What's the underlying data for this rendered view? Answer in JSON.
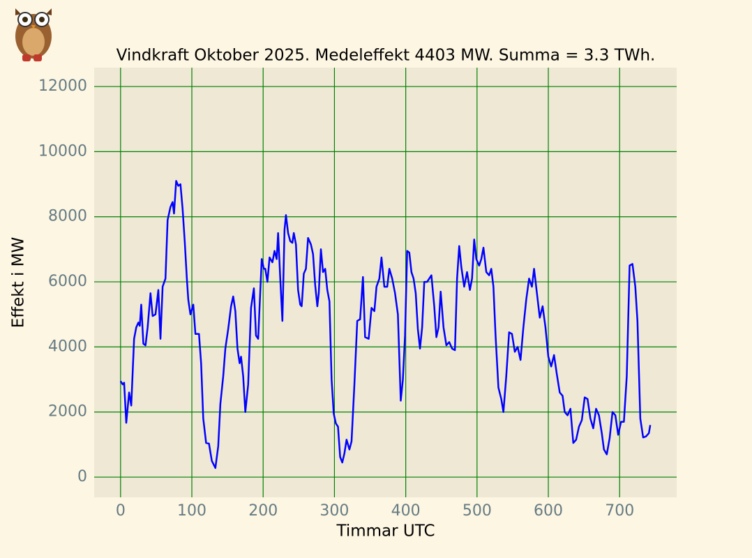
{
  "chart_data": {
    "type": "line",
    "title": "Vindkraft Oktober 2025. Medeleffekt 4403 MW. Summa = 3.3 TWh.",
    "xlabel": "Timmar UTC",
    "ylabel": "Effekt i MW",
    "x": [
      0,
      3,
      5,
      8,
      12,
      15,
      19,
      22,
      25,
      27,
      29,
      32,
      35,
      38,
      42,
      45,
      49,
      53,
      56,
      59,
      63,
      66,
      70,
      73,
      75,
      78,
      81,
      84,
      87,
      90,
      93,
      95,
      98,
      102,
      105,
      110,
      113,
      116,
      120,
      124,
      128,
      133,
      137,
      140,
      144,
      147,
      151,
      155,
      158,
      161,
      164,
      167,
      169,
      172,
      175,
      179,
      183,
      187,
      190,
      193,
      198,
      201,
      203,
      206,
      209,
      213,
      216,
      219,
      221,
      224,
      227,
      230,
      232,
      235,
      238,
      241,
      243,
      246,
      249,
      252,
      254,
      255,
      257,
      260,
      263,
      267,
      270,
      273,
      276,
      278,
      281,
      284,
      287,
      290,
      293,
      296,
      299,
      302,
      305,
      308,
      311,
      314,
      317,
      321,
      324,
      328,
      332,
      336,
      340,
      343,
      348,
      352,
      356,
      359,
      363,
      366,
      370,
      374,
      377,
      381,
      385,
      389,
      393,
      396,
      399,
      402,
      405,
      408,
      411,
      414,
      417,
      420,
      423,
      426,
      430,
      433,
      436,
      440,
      443,
      446,
      449,
      453,
      457,
      461,
      465,
      469,
      472,
      475,
      478,
      482,
      486,
      490,
      493,
      496,
      499,
      503,
      506,
      509,
      513,
      517,
      520,
      523,
      526,
      530,
      534,
      537,
      541,
      545,
      549,
      553,
      557,
      561,
      565,
      569,
      573,
      577,
      580,
      584,
      588,
      592,
      596,
      600,
      604,
      608,
      612,
      616,
      620,
      623,
      627,
      631,
      635,
      639,
      643,
      647,
      651,
      655,
      659,
      663,
      667,
      671,
      675,
      678,
      682,
      686,
      690,
      694,
      698,
      702,
      706,
      710,
      714,
      718,
      722,
      725,
      729,
      733,
      737,
      741,
      743
    ],
    "values": [
      2950,
      2850,
      2900,
      1670,
      2600,
      2200,
      4250,
      4600,
      4750,
      4650,
      5300,
      4100,
      4050,
      4600,
      5650,
      4950,
      5000,
      5750,
      4250,
      5850,
      6100,
      7900,
      8300,
      8450,
      8100,
      9100,
      8950,
      9000,
      8250,
      7250,
      6100,
      5450,
      5000,
      5300,
      4400,
      4400,
      3500,
      1800,
      1050,
      1030,
      500,
      280,
      950,
      2250,
      3100,
      3950,
      4550,
      5250,
      5550,
      5100,
      3950,
      3500,
      3700,
      3100,
      2000,
      2850,
      5200,
      5800,
      4350,
      4250,
      6700,
      6400,
      6400,
      6000,
      6750,
      6600,
      6950,
      6700,
      7500,
      6100,
      4800,
      7600,
      8050,
      7500,
      7250,
      7200,
      7500,
      7150,
      5750,
      5300,
      5250,
      5550,
      6250,
      6400,
      7350,
      7150,
      6850,
      5900,
      5250,
      5650,
      7000,
      6300,
      6400,
      5750,
      5400,
      3000,
      1950,
      1650,
      1550,
      620,
      450,
      730,
      1150,
      850,
      1100,
      2850,
      4800,
      4850,
      6150,
      4300,
      4250,
      5200,
      5100,
      5850,
      6100,
      6750,
      5850,
      5850,
      6400,
      6100,
      5650,
      5000,
      2350,
      3000,
      4350,
      6950,
      6900,
      6300,
      6100,
      5650,
      4550,
      3950,
      4600,
      6000,
      6000,
      6100,
      6200,
      5250,
      4300,
      4600,
      5700,
      4600,
      4050,
      4150,
      3950,
      3900,
      6100,
      7100,
      6450,
      5850,
      6300,
      5750,
      6100,
      7300,
      6700,
      6500,
      6700,
      7050,
      6300,
      6200,
      6400,
      5850,
      4350,
      2750,
      2400,
      2000,
      3100,
      4450,
      4400,
      3850,
      4000,
      3600,
      4600,
      5450,
      6100,
      5850,
      6400,
      5650,
      4900,
      5250,
      4600,
      3700,
      3400,
      3750,
      3150,
      2600,
      2500,
      2000,
      1900,
      2100,
      1050,
      1150,
      1550,
      1750,
      2450,
      2400,
      1800,
      1500,
      2100,
      1900,
      1350,
      850,
      700,
      1200,
      2000,
      1900,
      1300,
      1700,
      1700,
      3100,
      6500,
      6550,
      5850,
      4800,
      1800,
      1220,
      1250,
      1350,
      1600
    ],
    "color": "#0000ff",
    "xlim": [
      -37,
      780
    ],
    "ylim": [
      -620,
      12580
    ],
    "xticks": [
      0,
      100,
      200,
      300,
      400,
      500,
      600,
      700
    ],
    "yticks": [
      0,
      2000,
      4000,
      6000,
      8000,
      10000,
      12000
    ],
    "grid": true,
    "grid_color": "#008000"
  }
}
